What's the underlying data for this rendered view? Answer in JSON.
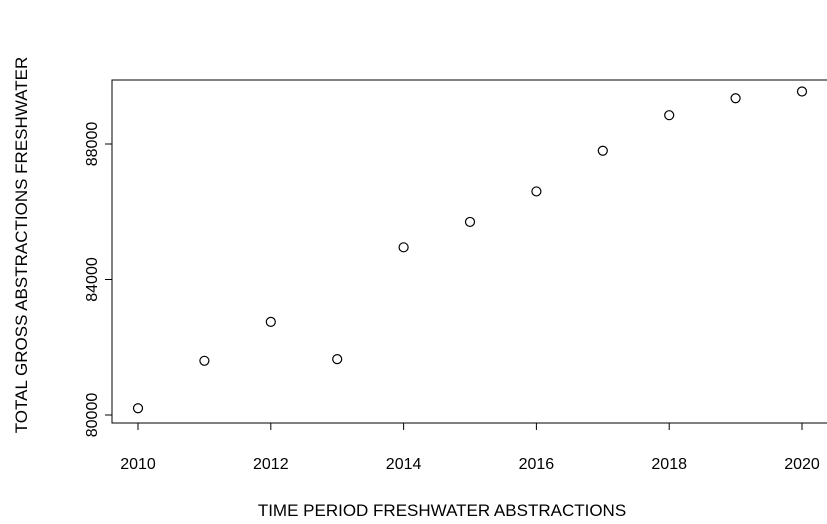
{
  "chart_data": {
    "type": "scatter",
    "title": "",
    "xlabel": "TIME PERIOD FRESHWATER ABSTRACTIONS",
    "ylabel": "TOTAL GROSS ABSTRACTIONS FRESHWATER",
    "x_ticks": [
      "2010",
      "2012",
      "2014",
      "2016",
      "2018",
      "2020"
    ],
    "y_ticks": [
      "80000",
      "84000",
      "88000"
    ],
    "grid": false,
    "marker": "open-circle",
    "colors": {
      "marker": "#000000",
      "axis": "#000000",
      "background": "#ffffff"
    },
    "series": [
      {
        "x": [
          2010,
          2011,
          2012,
          2013,
          2014,
          2015,
          2016,
          2017,
          2018,
          2019,
          2020
        ],
        "y": [
          80200,
          81600,
          82750,
          81650,
          84950,
          85700,
          86600,
          87800,
          88850,
          89350,
          89550
        ]
      }
    ]
  }
}
